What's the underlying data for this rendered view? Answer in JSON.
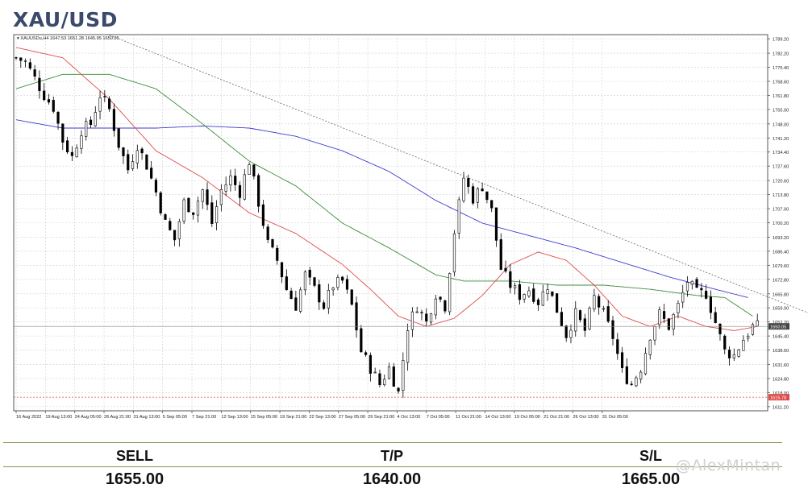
{
  "title": "XAU/USD",
  "colors": {
    "ma_red": "#e04b4b",
    "ma_green": "#3a8c3a",
    "ma_blue": "#3a3ad0",
    "candle": "#000000",
    "grid": "#cfcfcf",
    "price_line": "#888888",
    "target_line": "#e04b4b",
    "table_line": "#7d9a4a"
  },
  "chart_data": {
    "type": "candlestick",
    "symbol_header": "XAUUSDu,H4  1647.53 1651.28 1645.95 1650.05",
    "ylim": [
      1609.2,
      1791.2
    ],
    "y_ticks": [
      "1789.20",
      "1782.20",
      "1775.40",
      "1768.60",
      "1761.80",
      "1755.00",
      "1748.00",
      "1741.20",
      "1734.40",
      "1727.60",
      "1720.60",
      "1713.80",
      "1707.00",
      "1700.20",
      "1693.20",
      "1686.40",
      "1679.60",
      "1672.80",
      "1665.80",
      "1659.00",
      "1652.20",
      "1645.40",
      "1638.60",
      "1631.60",
      "1624.80",
      "1618.00",
      "1611.20"
    ],
    "x_ticks": [
      "16 Aug 2022",
      "19 Aug 13:00",
      "24 Aug 05:00",
      "26 Aug 21:00",
      "31 Aug 13:00",
      "5 Sep 05:00",
      "7 Sep 21:00",
      "12 Sep 13:00",
      "15 Sep 05:00",
      "19 Sep 21:00",
      "22 Sep 13:00",
      "27 Sep 05:00",
      "29 Sep 21:00",
      "4 Oct 13:00",
      "7 Oct 05:00",
      "11 Oct 21:00",
      "14 Oct 13:00",
      "19 Oct 05:00",
      "21 Oct 21:00",
      "26 Oct 13:00",
      "31 Oct 05:00"
    ],
    "current_price_label": "1650.05",
    "red_line_label": "1615.78",
    "close_path": [
      [
        0,
        1780
      ],
      [
        2,
        1778
      ],
      [
        4,
        1770
      ],
      [
        6,
        1762
      ],
      [
        8,
        1756
      ],
      [
        10,
        1740
      ],
      [
        12,
        1732
      ],
      [
        14,
        1745
      ],
      [
        16,
        1748
      ],
      [
        18,
        1762
      ],
      [
        20,
        1755
      ],
      [
        22,
        1738
      ],
      [
        24,
        1726
      ],
      [
        26,
        1738
      ],
      [
        28,
        1728
      ],
      [
        30,
        1715
      ],
      [
        32,
        1700
      ],
      [
        34,
        1692
      ],
      [
        36,
        1710
      ],
      [
        38,
        1706
      ],
      [
        40,
        1716
      ],
      [
        42,
        1700
      ],
      [
        44,
        1716
      ],
      [
        46,
        1722
      ],
      [
        48,
        1715
      ],
      [
        50,
        1730
      ],
      [
        52,
        1710
      ],
      [
        54,
        1690
      ],
      [
        56,
        1682
      ],
      [
        58,
        1668
      ],
      [
        60,
        1660
      ],
      [
        62,
        1675
      ],
      [
        64,
        1668
      ],
      [
        66,
        1660
      ],
      [
        68,
        1670
      ],
      [
        70,
        1672
      ],
      [
        72,
        1660
      ],
      [
        74,
        1638
      ],
      [
        76,
        1630
      ],
      [
        78,
        1622
      ],
      [
        80,
        1630
      ],
      [
        82,
        1618
      ],
      [
        84,
        1650
      ],
      [
        86,
        1660
      ],
      [
        88,
        1652
      ],
      [
        90,
        1666
      ],
      [
        92,
        1660
      ],
      [
        94,
        1696
      ],
      [
        96,
        1722
      ],
      [
        98,
        1712
      ],
      [
        100,
        1718
      ],
      [
        102,
        1706
      ],
      [
        104,
        1678
      ],
      [
        106,
        1670
      ],
      [
        108,
        1665
      ],
      [
        110,
        1668
      ],
      [
        112,
        1662
      ],
      [
        114,
        1670
      ],
      [
        116,
        1658
      ],
      [
        118,
        1646
      ],
      [
        120,
        1656
      ],
      [
        122,
        1648
      ],
      [
        124,
        1664
      ],
      [
        126,
        1656
      ],
      [
        128,
        1645
      ],
      [
        130,
        1628
      ],
      [
        132,
        1622
      ],
      [
        134,
        1630
      ],
      [
        136,
        1646
      ],
      [
        138,
        1656
      ],
      [
        140,
        1650
      ],
      [
        142,
        1660
      ],
      [
        144,
        1672
      ],
      [
        146,
        1666
      ],
      [
        148,
        1666
      ],
      [
        150,
        1652
      ],
      [
        152,
        1638
      ],
      [
        154,
        1636
      ],
      [
        156,
        1644
      ],
      [
        158,
        1650
      ],
      [
        159,
        1650
      ]
    ],
    "ma_red": [
      [
        0,
        1785
      ],
      [
        10,
        1780
      ],
      [
        20,
        1760
      ],
      [
        30,
        1735
      ],
      [
        40,
        1722
      ],
      [
        50,
        1705
      ],
      [
        60,
        1695
      ],
      [
        70,
        1680
      ],
      [
        76,
        1668
      ],
      [
        82,
        1655
      ],
      [
        88,
        1650
      ],
      [
        94,
        1654
      ],
      [
        100,
        1665
      ],
      [
        106,
        1680
      ],
      [
        112,
        1686
      ],
      [
        118,
        1682
      ],
      [
        124,
        1670
      ],
      [
        130,
        1655
      ],
      [
        136,
        1650
      ],
      [
        142,
        1655
      ],
      [
        148,
        1650
      ],
      [
        154,
        1648
      ],
      [
        159,
        1650
      ]
    ],
    "ma_green": [
      [
        0,
        1765
      ],
      [
        10,
        1772
      ],
      [
        20,
        1772
      ],
      [
        30,
        1765
      ],
      [
        40,
        1748
      ],
      [
        50,
        1730
      ],
      [
        60,
        1718
      ],
      [
        70,
        1700
      ],
      [
        80,
        1688
      ],
      [
        90,
        1675
      ],
      [
        96,
        1672
      ],
      [
        106,
        1672
      ],
      [
        116,
        1670
      ],
      [
        126,
        1670
      ],
      [
        136,
        1668
      ],
      [
        146,
        1665
      ],
      [
        152,
        1664
      ],
      [
        158,
        1655
      ]
    ],
    "ma_blue": [
      [
        0,
        1750
      ],
      [
        10,
        1746
      ],
      [
        20,
        1746
      ],
      [
        30,
        1746
      ],
      [
        40,
        1747
      ],
      [
        50,
        1746
      ],
      [
        60,
        1742
      ],
      [
        70,
        1735
      ],
      [
        80,
        1725
      ],
      [
        90,
        1711
      ],
      [
        100,
        1700
      ],
      [
        110,
        1694
      ],
      [
        120,
        1688
      ],
      [
        130,
        1681
      ],
      [
        140,
        1674
      ],
      [
        150,
        1668
      ],
      [
        157,
        1664
      ]
    ],
    "trendline": [
      [
        20,
        1791
      ],
      [
        175,
        1652
      ]
    ],
    "target_level": 1615.78,
    "current_price": 1650.05
  },
  "table": {
    "headers": [
      "SELL",
      "T/P",
      "S/L"
    ],
    "values": [
      "1655.00",
      "1640.00",
      "1665.00"
    ]
  },
  "watermark": "@AlexMintan"
}
